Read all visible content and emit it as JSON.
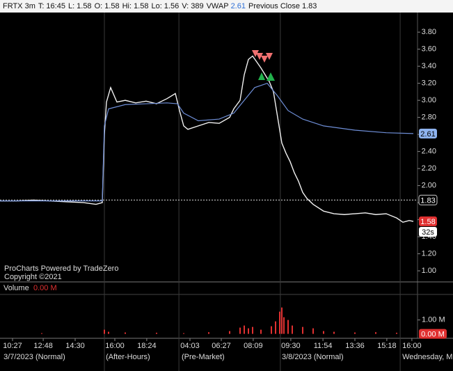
{
  "header": {
    "symbol": "FRTX 3m",
    "fields": [
      {
        "label": "T:",
        "value": "16:45"
      },
      {
        "label": "L:",
        "value": "1.58"
      },
      {
        "label": "O:",
        "value": "1.58"
      },
      {
        "label": "Hi:",
        "value": "1.58"
      },
      {
        "label": "Lo:",
        "value": "1.56"
      },
      {
        "label": "V:",
        "value": "389"
      },
      {
        "label": "VWAP",
        "value": "2.61"
      },
      {
        "label": "Previous Close",
        "value": "1.83"
      }
    ]
  },
  "chart_data": [
    {
      "type": "line",
      "ylim": [
        0.87,
        4.03
      ],
      "xlim": [
        0,
        200
      ],
      "yticks": [
        {
          "value": 1.0,
          "label": "1.00"
        },
        {
          "value": 1.2,
          "label": "1.20"
        },
        {
          "value": 1.4,
          "label": "1.40"
        },
        {
          "value": 1.6,
          "label": "1.60"
        },
        {
          "value": 1.8,
          "label": "1.80"
        },
        {
          "value": 2.0,
          "label": "2.00"
        },
        {
          "value": 2.2,
          "label": "2.20"
        },
        {
          "value": 2.4,
          "label": "2.40"
        },
        {
          "value": 2.6,
          "label": "2.60"
        },
        {
          "value": 2.8,
          "label": "2.80"
        },
        {
          "value": 3.0,
          "label": "3.00"
        },
        {
          "value": 3.2,
          "label": "3.20"
        },
        {
          "value": 3.4,
          "label": "3.40"
        },
        {
          "value": 3.6,
          "label": "3.60"
        },
        {
          "value": 3.8,
          "label": "3.80"
        }
      ],
      "previous_close": 1.83,
      "countdown": "32s",
      "watermark": [
        "ProCharts Powered by TradeZero",
        "Copyright ©2021"
      ],
      "series": [
        {
          "color": "#f2f2f2",
          "x": [
            0,
            8,
            16,
            24,
            32,
            40,
            46,
            49,
            50,
            51,
            53,
            56,
            60,
            65,
            70,
            75,
            80,
            84,
            86,
            88,
            90,
            95,
            100,
            105,
            110,
            112,
            115,
            117,
            119,
            121,
            123,
            125,
            127,
            129,
            131,
            133,
            135,
            137,
            139,
            141,
            143,
            145,
            147,
            150,
            155,
            160,
            165,
            170,
            175,
            180,
            185,
            190,
            193,
            196,
            198
          ],
          "values": [
            1.82,
            1.82,
            1.83,
            1.82,
            1.81,
            1.8,
            1.78,
            1.8,
            2.6,
            2.98,
            3.15,
            2.98,
            3.0,
            2.97,
            2.99,
            2.96,
            3.02,
            3.08,
            2.88,
            2.7,
            2.66,
            2.7,
            2.74,
            2.73,
            2.8,
            2.9,
            3.0,
            3.3,
            3.48,
            3.52,
            3.45,
            3.38,
            3.3,
            3.22,
            3.1,
            2.8,
            2.5,
            2.38,
            2.28,
            2.15,
            2.05,
            1.92,
            1.85,
            1.78,
            1.7,
            1.67,
            1.66,
            1.67,
            1.68,
            1.66,
            1.67,
            1.62,
            1.57,
            1.59,
            1.58
          ]
        },
        {
          "color": "#6f8fd8",
          "x": [
            0,
            49,
            50,
            52,
            60,
            70,
            80,
            85,
            88,
            95,
            105,
            112,
            117,
            122,
            128,
            133,
            138,
            145,
            155,
            170,
            185,
            198
          ],
          "values": [
            1.82,
            1.82,
            2.7,
            2.9,
            2.95,
            2.96,
            2.97,
            2.96,
            2.85,
            2.76,
            2.78,
            2.85,
            3.0,
            3.15,
            3.2,
            3.05,
            2.88,
            2.78,
            2.7,
            2.65,
            2.62,
            2.61
          ]
        }
      ]
    },
    {
      "type": "bar",
      "title": "Volume",
      "header_value": "0.00 M",
      "ylim": [
        -0.32,
        2.84
      ],
      "xlim": [
        0,
        200
      ],
      "color": "#e03030",
      "yticks": [
        {
          "value": 1,
          "label": "1.00 M"
        }
      ],
      "last_tag": {
        "value": 0,
        "label": "0.00 M"
      },
      "x": [
        20,
        50,
        52,
        60,
        75,
        88,
        100,
        110,
        115,
        117,
        119,
        121,
        125,
        130,
        132,
        134,
        135,
        136,
        138,
        140,
        145,
        150,
        155,
        160,
        170,
        180,
        190
      ],
      "values": [
        0.05,
        0.3,
        0.15,
        0.1,
        0.08,
        0.05,
        0.12,
        0.2,
        0.45,
        0.6,
        0.4,
        0.5,
        0.3,
        0.55,
        0.9,
        1.6,
        1.9,
        1.2,
        1.0,
        0.6,
        0.5,
        0.4,
        0.2,
        0.15,
        0.1,
        0.12,
        0.08
      ],
      "xticks": [
        {
          "value": 6,
          "label": "10:27"
        },
        {
          "value": 20.7,
          "label": "12:48"
        },
        {
          "value": 36,
          "label": "14:30"
        },
        {
          "value": 55,
          "label": "16:00"
        },
        {
          "value": 70.3,
          "label": "18:24"
        },
        {
          "value": 91,
          "label": "04:03"
        },
        {
          "value": 106,
          "label": "06:27"
        },
        {
          "value": 121.3,
          "label": "08:09"
        },
        {
          "value": 139.3,
          "label": "09:30"
        },
        {
          "value": 154.7,
          "label": "11:54"
        },
        {
          "value": 170,
          "label": "13:36"
        },
        {
          "value": 185.3,
          "label": "15:18"
        },
        {
          "value": 197.3,
          "label": "16:00"
        }
      ],
      "sessions": [
        {
          "value": 1.7,
          "label": "3/7/2023 (Normal)"
        },
        {
          "value": 50.7,
          "label": "(After-Hours)"
        },
        {
          "value": 87,
          "label": "(Pre-Market)"
        },
        {
          "value": 135,
          "label": "3/8/2023 (Normal)"
        },
        {
          "value": 192.7,
          "label": "Wednesday, M"
        }
      ],
      "dividers": [
        50,
        85.7,
        134.3,
        191.7
      ]
    }
  ]
}
